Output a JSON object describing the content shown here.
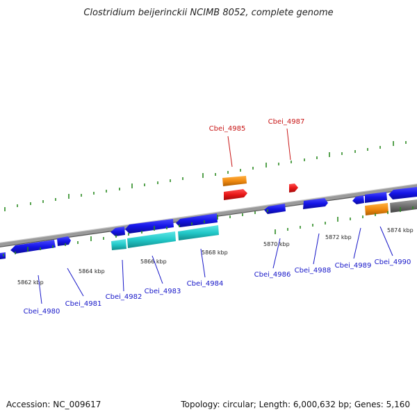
{
  "title": "Clostridium beijerinckii NCIMB 8052, complete genome",
  "footer": {
    "accession": "Accession: NC_009617",
    "summary": "Topology: circular; Length: 6,000,632 bp; Genes: 5,160"
  },
  "colors": {
    "background": "#ffffff",
    "backbone": "#888888",
    "tick": "#2b8a22",
    "gene_cds": "#1515e6",
    "gene_highlight": "#e81818",
    "rna_cyan": "#22c8c8",
    "feature_orange": "#f08a10",
    "feature_gray": "#707070",
    "label_blue": "#1515c8",
    "label_red": "#c81515"
  },
  "scale_labels": [
    "5862 kbp",
    "5864 kbp",
    "5866 kbp",
    "5868 kbp",
    "5870 kbp",
    "5872 kbp",
    "5874 kbp"
  ],
  "gene_labels": [
    "Cbei_4980",
    "Cbei_4981",
    "Cbei_4982",
    "Cbei_4983",
    "Cbei_4984",
    "Cbei_4985",
    "Cbei_4986",
    "Cbei_4987",
    "Cbei_4988",
    "Cbei_4989",
    "Cbei_4990"
  ]
}
